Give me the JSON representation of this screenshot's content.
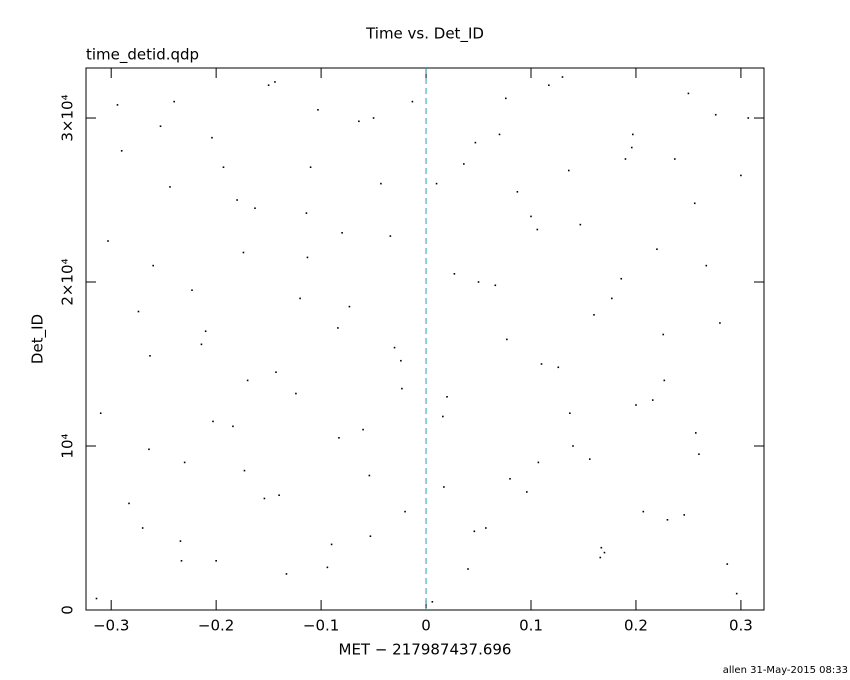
{
  "chart_data": {
    "type": "scatter",
    "title": "Time vs. Det_ID",
    "subtitle": "time_detid.qdp",
    "x_label": "MET − 217987437.696",
    "y_label": "Det_ID",
    "footer": "allen 31-May-2015 08:33",
    "xlim": [
      -0.324,
      0.322
    ],
    "ylim": [
      0,
      33050
    ],
    "xticks": [
      {
        "value": -0.3,
        "label": "−0.3"
      },
      {
        "value": -0.2,
        "label": "−0.2"
      },
      {
        "value": -0.1,
        "label": "−0.1"
      },
      0,
      0.1,
      0.2,
      0.3
    ],
    "yticks": [
      0,
      {
        "value": 10000,
        "label": "10⁴"
      },
      {
        "value": 20000,
        "label": "2×10⁴"
      },
      {
        "value": 30000,
        "label": "3×10⁴"
      }
    ],
    "vline": {
      "x": 0,
      "color": "#2a9fb0"
    },
    "series": [
      {
        "color": "#000000",
        "x": [
          -0.31,
          -0.29,
          -0.27,
          -0.26,
          -0.24,
          -0.23,
          -0.21,
          -0.2,
          -0.18,
          -0.17,
          -0.15,
          -0.14,
          -0.12,
          -0.11,
          -0.09,
          -0.08,
          -0.06,
          -0.05,
          -0.03,
          -0.02,
          0.01,
          0.02,
          0.04,
          0.05,
          0.07,
          0.08,
          0.1,
          0.11,
          0.13,
          0.14,
          0.16,
          0.17,
          0.19,
          0.2,
          0.22,
          0.23,
          0.25,
          0.26,
          0.28,
          0.3,
          -0.303,
          -0.283,
          -0.263,
          -0.253,
          -0.233,
          -0.223,
          -0.203,
          -0.193,
          -0.173,
          -0.163,
          -0.143,
          -0.133,
          -0.113,
          -0.103,
          -0.083,
          -0.073,
          -0.053,
          -0.043,
          -0.023,
          -0.013,
          0.017,
          0.027,
          0.047,
          0.057,
          0.077,
          0.087,
          0.107,
          0.117,
          0.137,
          0.147,
          0.167,
          0.177,
          0.197,
          0.207,
          0.227,
          0.237,
          0.257,
          0.267,
          0.287,
          0.307,
          -0.314,
          -0.294,
          -0.274,
          -0.264,
          -0.244,
          -0.234,
          -0.214,
          -0.204,
          -0.184,
          -0.174,
          -0.154,
          -0.144,
          -0.124,
          -0.114,
          -0.094,
          -0.084,
          -0.064,
          -0.054,
          -0.034,
          -0.024,
          0.006,
          0.016,
          0.036,
          0.046,
          0.066,
          0.076,
          0.096,
          0.106,
          0.126,
          0.136,
          0.156,
          0.166,
          0.186,
          0.196,
          0.216,
          0.226,
          0.246,
          0.256,
          0.276,
          0.296
        ],
        "values": [
          12000,
          28000,
          5000,
          21000,
          31000,
          9000,
          17000,
          3000,
          25000,
          14000,
          32000,
          7000,
          19000,
          27000,
          4000,
          23000,
          11000,
          30000,
          16000,
          6000,
          26000,
          13000,
          2500,
          20000,
          29000,
          8000,
          24000,
          15000,
          32500,
          10000,
          18000,
          3500,
          27500,
          12500,
          22000,
          5500,
          31500,
          9500,
          17500,
          26500,
          22500,
          6500,
          15500,
          29500,
          3000,
          19500,
          11500,
          27000,
          8500,
          24500,
          14500,
          2200,
          21500,
          30500,
          10500,
          18500,
          4500,
          26000,
          13500,
          31000,
          7500,
          20500,
          28500,
          5000,
          16500,
          25500,
          9000,
          32000,
          12000,
          23500,
          3800,
          19000,
          29000,
          6000,
          14000,
          27500,
          10800,
          21000,
          2800,
          30000,
          700,
          30800,
          18200,
          9800,
          25800,
          4200,
          16200,
          28800,
          11200,
          21800,
          6800,
          32200,
          13200,
          24200,
          2600,
          17200,
          29800,
          8200,
          22800,
          15200,
          500,
          11800,
          27200,
          4800,
          19800,
          31200,
          7200,
          23200,
          14800,
          26800,
          9200,
          3200,
          20200,
          28200,
          12800,
          16800,
          5800,
          24800,
          30200,
          1000
        ]
      }
    ]
  }
}
